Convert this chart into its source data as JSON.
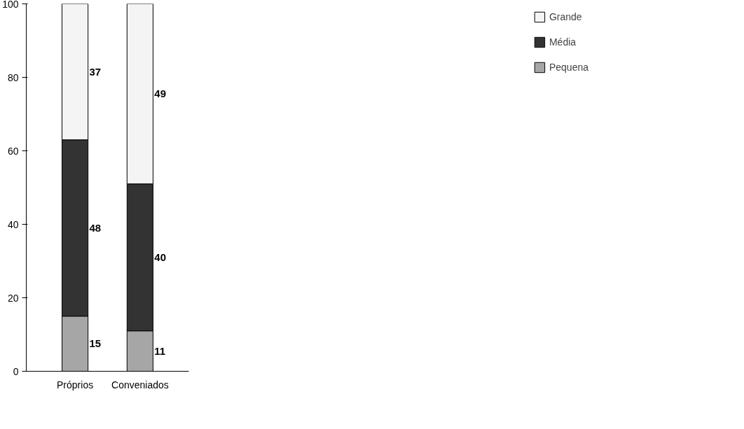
{
  "chart_data": {
    "type": "bar",
    "stacked": true,
    "categories": [
      "Próprios",
      "Conveniados"
    ],
    "series": [
      {
        "name": "Pequena",
        "color": "#a6a6a6",
        "values": [
          15,
          11
        ]
      },
      {
        "name": "Média",
        "color": "#333333",
        "values": [
          48,
          40
        ]
      },
      {
        "name": "Grande",
        "color": "#f4f4f4",
        "values": [
          37,
          49
        ]
      }
    ],
    "ylim": [
      0,
      100
    ],
    "yticks": [
      0,
      20,
      40,
      60,
      80,
      100
    ],
    "grid": false,
    "legend": "right",
    "data_labels": true
  }
}
